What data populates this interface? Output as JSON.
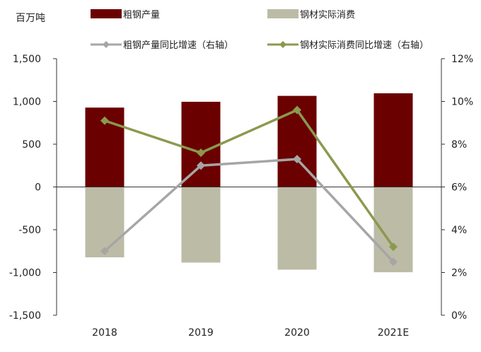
{
  "chart_data": {
    "type": "bar",
    "y_unit_label": "百万吨",
    "categories": [
      "2018",
      "2019",
      "2020",
      "2021E"
    ],
    "left_axis": {
      "ylim": [
        -1500,
        1500
      ],
      "ticks": [
        1500,
        1000,
        500,
        0,
        -500,
        -1000,
        -1500
      ],
      "tick_labels": [
        "1,500",
        "1,000",
        "500",
        "0",
        "-500",
        "-1,000",
        "-1,500"
      ]
    },
    "right_axis": {
      "ylim": [
        0,
        12
      ],
      "ticks": [
        12,
        10,
        8,
        6,
        4,
        2,
        0
      ],
      "tick_labels": [
        "12%",
        "10%",
        "8%",
        "6%",
        "4%",
        "2%",
        "0%"
      ]
    },
    "series": [
      {
        "name": "粗钢产量",
        "kind": "bar",
        "axis": "left",
        "color": "#6b0000",
        "values": [
          928,
          996,
          1065,
          1095
        ]
      },
      {
        "name": "钢材实际消费",
        "kind": "bar",
        "axis": "left",
        "color": "#bcbba6",
        "values": [
          -823,
          -884,
          -967,
          -997
        ]
      },
      {
        "name": "粗钢产量同比增速（右轴）",
        "kind": "line",
        "axis": "right",
        "color": "#a6a6a6",
        "values": [
          3.0,
          7.0,
          7.3,
          2.5
        ]
      },
      {
        "name": "钢材实际消费同比增速（右轴）",
        "kind": "line",
        "axis": "right",
        "color": "#8a9a4e",
        "values": [
          9.1,
          7.6,
          9.6,
          3.2
        ]
      }
    ],
    "grid": false,
    "legend_position": "top"
  }
}
